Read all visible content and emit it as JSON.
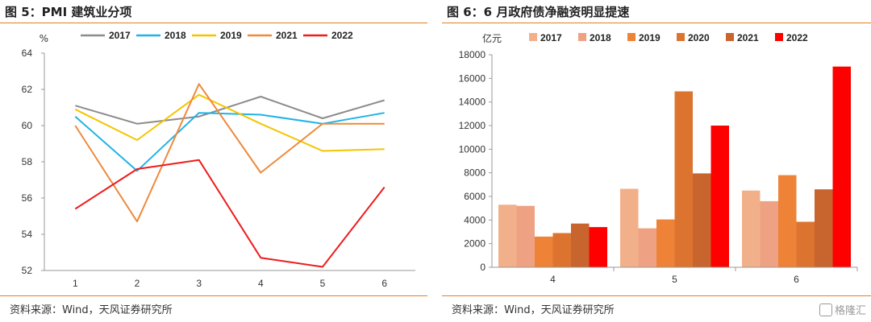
{
  "chart_data": [
    {
      "type": "line",
      "title": "图 5：PMI 建筑业分项",
      "unit_label": "%",
      "source": "资料来源：Wind，天风证券研究所",
      "x": [
        "1",
        "2",
        "3",
        "4",
        "5",
        "6"
      ],
      "ylim": [
        52,
        64
      ],
      "yticks": [
        "52",
        "54",
        "56",
        "58",
        "60",
        "62",
        "64"
      ],
      "legend_position": "top",
      "grid": false,
      "series": [
        {
          "name": "2017",
          "color": "#8c8c8c",
          "values": [
            61.1,
            60.1,
            60.5,
            61.6,
            60.4,
            61.4
          ]
        },
        {
          "name": "2018",
          "color": "#1fb3e6",
          "values": [
            60.5,
            57.5,
            60.7,
            60.6,
            60.1,
            60.7
          ]
        },
        {
          "name": "2019",
          "color": "#f5c400",
          "values": [
            60.9,
            59.2,
            61.7,
            60.1,
            58.6,
            58.7
          ]
        },
        {
          "name": "2021",
          "color": "#ee8a3c",
          "values": [
            60.0,
            54.7,
            62.3,
            57.4,
            60.1,
            60.1
          ]
        },
        {
          "name": "2022",
          "color": "#ee1c1c",
          "values": [
            55.4,
            57.6,
            58.1,
            52.7,
            52.2,
            56.6
          ]
        }
      ]
    },
    {
      "type": "bar",
      "title": "图 6：6 月政府债净融资明显提速",
      "unit_label": "亿元",
      "source": "资料来源：Wind，天风证券研究所",
      "categories": [
        "4",
        "5",
        "6"
      ],
      "ylim": [
        0,
        18000
      ],
      "yticks": [
        "0",
        "2000",
        "4000",
        "6000",
        "8000",
        "10000",
        "12000",
        "14000",
        "16000",
        "18000"
      ],
      "legend_position": "top",
      "grid": false,
      "series": [
        {
          "name": "2017",
          "color": "#f2b08a",
          "values": [
            5300,
            6650,
            6500
          ]
        },
        {
          "name": "2018",
          "color": "#eea283",
          "values": [
            5200,
            3300,
            5600
          ]
        },
        {
          "name": "2019",
          "color": "#ee8236",
          "values": [
            2600,
            4050,
            7800
          ]
        },
        {
          "name": "2020",
          "color": "#dc7430",
          "values": [
            2900,
            14900,
            3850
          ]
        },
        {
          "name": "2021",
          "color": "#c8642e",
          "values": [
            3700,
            7950,
            6600
          ]
        },
        {
          "name": "2022",
          "color": "#ff0000",
          "values": [
            3400,
            12000,
            17000
          ]
        }
      ]
    }
  ],
  "watermark": "格隆汇"
}
